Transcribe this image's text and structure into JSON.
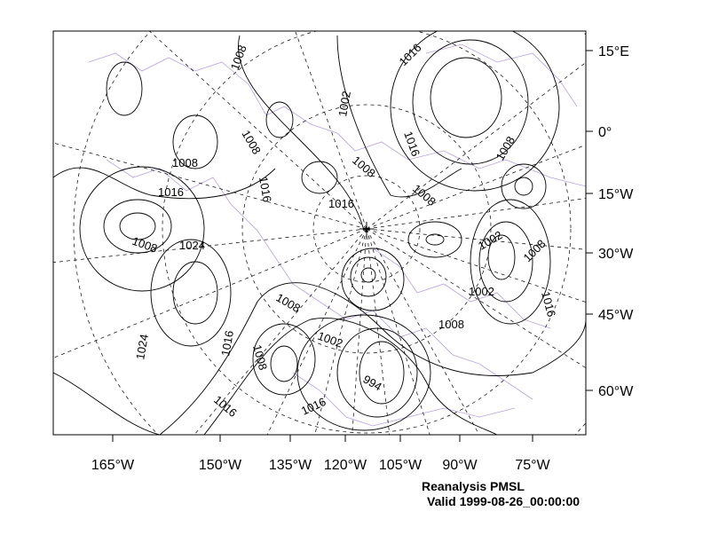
{
  "title": "Reanalysis PMSL",
  "valid": "Valid 1999-08-26_00:00:00",
  "right_axis_labels": [
    "15°E",
    "0°",
    "15°W",
    "30°W",
    "45°W",
    "60°W"
  ],
  "bottom_axis_labels": [
    "165°W",
    "150°W",
    "135°W",
    "120°W",
    "105°W",
    "90°W",
    "75°W"
  ],
  "contour_labels": [
    "1008",
    "1016",
    "1002",
    "1008",
    "1016",
    "1008",
    "1008",
    "1008",
    "1016",
    "1016",
    "1008",
    "1016",
    "1008",
    "1024",
    "1002",
    "1008",
    "1002",
    "1008",
    "1016",
    "1008",
    "1016",
    "1024",
    "1002",
    "1008",
    "994",
    "1016",
    "1016"
  ],
  "colors": {
    "contour": "#000000",
    "coastline": "#b9a3d9",
    "grid": "#000000"
  }
}
